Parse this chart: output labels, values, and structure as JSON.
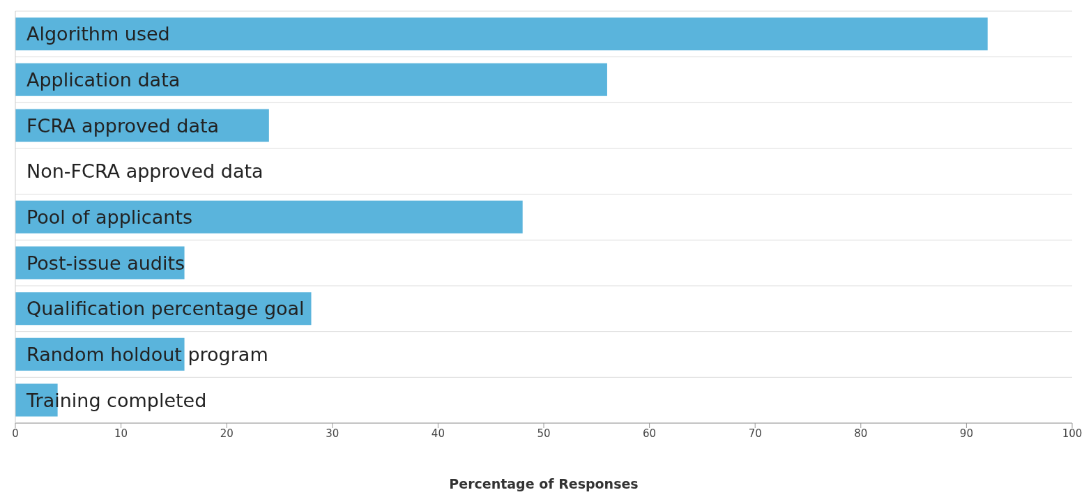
{
  "chart_data": {
    "type": "bar",
    "orientation": "horizontal",
    "xlabel": "Percentage of Responses",
    "categories": [
      "Algorithm used",
      "Application data",
      "FCRA approved data",
      "Non-FCRA approved data",
      "Pool of applicants",
      "Post-issue audits",
      "Qualification percentage goal",
      "Random holdout program",
      "Training completed"
    ],
    "values": [
      92,
      56,
      24,
      0,
      48,
      16,
      28,
      16,
      4
    ],
    "color": "#5ab4dc",
    "xlim": [
      0,
      100
    ],
    "xticks": [
      0,
      10,
      20,
      30,
      40,
      50,
      60,
      70,
      80,
      90,
      100
    ],
    "grid": "y",
    "legend": false
  }
}
